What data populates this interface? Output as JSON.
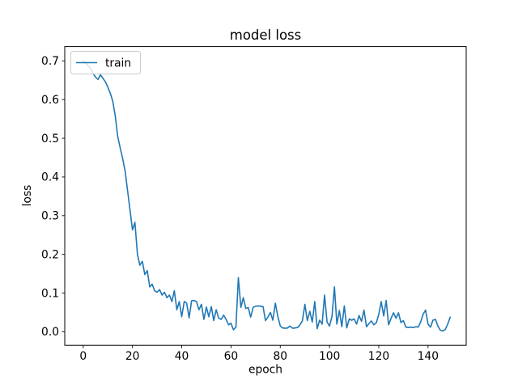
{
  "figure": {
    "background": "#ffffff"
  },
  "chart_data": {
    "type": "line",
    "title": "model loss",
    "xlabel": "epoch",
    "ylabel": "loss",
    "grid": false,
    "legend": {
      "position": "upper left",
      "entries": [
        "train"
      ]
    },
    "line_color": "#1f77b4",
    "x_start": 0,
    "x_step": 1,
    "xticks": [
      0,
      20,
      40,
      60,
      80,
      100,
      120,
      140
    ],
    "yticks": [
      0.0,
      0.1,
      0.2,
      0.3,
      0.4,
      0.5,
      0.6,
      0.7
    ],
    "xlim": [
      -7.5,
      155.5
    ],
    "ylim": [
      -0.035,
      0.737
    ],
    "series": [
      {
        "name": "train",
        "color": "#1f77b4",
        "values": [
          0.7,
          0.694,
          0.688,
          0.68,
          0.668,
          0.658,
          0.652,
          0.664,
          0.655,
          0.646,
          0.632,
          0.616,
          0.596,
          0.558,
          0.505,
          0.475,
          0.448,
          0.415,
          0.365,
          0.315,
          0.263,
          0.283,
          0.2,
          0.172,
          0.182,
          0.148,
          0.158,
          0.116,
          0.123,
          0.106,
          0.102,
          0.109,
          0.095,
          0.102,
          0.088,
          0.095,
          0.078,
          0.106,
          0.057,
          0.078,
          0.039,
          0.078,
          0.074,
          0.036,
          0.08,
          0.081,
          0.078,
          0.057,
          0.071,
          0.032,
          0.064,
          0.039,
          0.065,
          0.029,
          0.057,
          0.035,
          0.032,
          0.043,
          0.032,
          0.018,
          0.022,
          0.005,
          0.012,
          0.14,
          0.063,
          0.088,
          0.06,
          0.063,
          0.038,
          0.063,
          0.066,
          0.067,
          0.066,
          0.065,
          0.029,
          0.038,
          0.05,
          0.03,
          0.074,
          0.04,
          0.015,
          0.01,
          0.009,
          0.01,
          0.015,
          0.009,
          0.01,
          0.011,
          0.018,
          0.028,
          0.071,
          0.029,
          0.053,
          0.025,
          0.078,
          0.008,
          0.03,
          0.02,
          0.095,
          0.025,
          0.015,
          0.04,
          0.116,
          0.02,
          0.055,
          0.013,
          0.067,
          0.01,
          0.033,
          0.03,
          0.033,
          0.02,
          0.042,
          0.027,
          0.056,
          0.013,
          0.021,
          0.028,
          0.018,
          0.023,
          0.045,
          0.078,
          0.041,
          0.081,
          0.018,
          0.035,
          0.049,
          0.035,
          0.049,
          0.024,
          0.029,
          0.012,
          0.011,
          0.012,
          0.011,
          0.013,
          0.012,
          0.025,
          0.045,
          0.056,
          0.02,
          0.012,
          0.03,
          0.032,
          0.015,
          0.004,
          0.002,
          0.006,
          0.02,
          0.038
        ]
      }
    ]
  }
}
